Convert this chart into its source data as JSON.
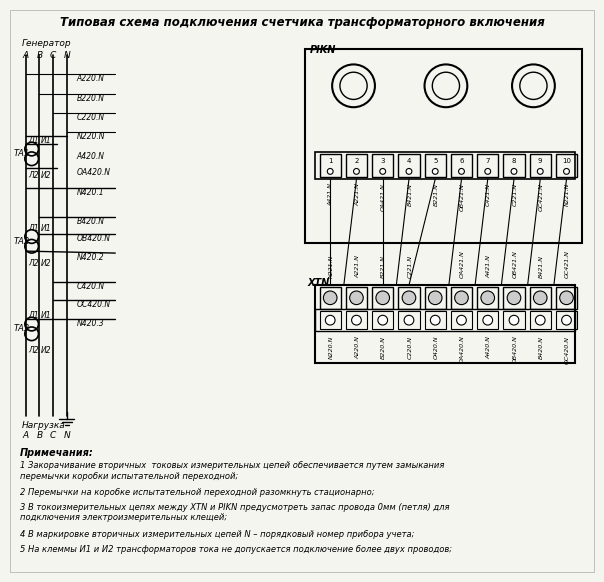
{
  "title": "Типовая схема подключения счетчика трансформаторного включения",
  "background_color": "#f5f5f0",
  "notes_header": "Примечания:",
  "notes": [
    "1 Закорачивание вторичных  токовых измерительных цепей обеспечивается путем замыкания\nперемычки коробки испытательной переходной;",
    "2 Перемычки на коробке испытательной переходной разомкнуть стационарно;",
    "3 В токоизмерительных цепях между XTN и PIKN предусмотреть запас провода 0мм (петля) для\nподключения электроизмерительных клещей;",
    "4 В маркировке вторичных измерительных цепей N – порядковый номер прибора учета;",
    "5 На клеммы И1 и И2 трансформаторов тока не допускается подключение более двух проводов;"
  ]
}
